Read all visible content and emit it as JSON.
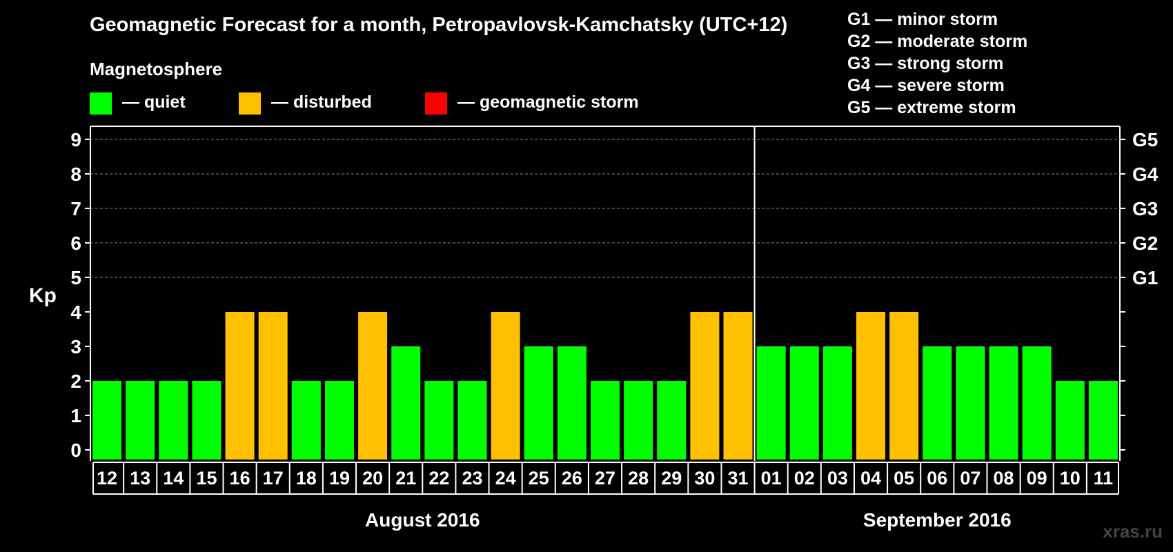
{
  "title": "Geomagnetic Forecast for a month, Petropavlovsk-Kamchatsky (UTC+12)",
  "legend": {
    "title": "Magnetosphere",
    "items": [
      {
        "label": "— quiet",
        "color": "#00ff00"
      },
      {
        "label": "— disturbed",
        "color": "#ffc000"
      },
      {
        "label": "— geomagnetic storm",
        "color": "#ff0000"
      }
    ]
  },
  "storm_legend": [
    "G1 — minor storm",
    "G2 — moderate storm",
    "G3 — strong storm",
    "G4 — severe storm",
    "G5 — extreme storm"
  ],
  "watermark": "xras.ru",
  "chart_data": {
    "type": "bar",
    "title": "Geomagnetic Forecast for a month, Petropavlovsk-Kamchatsky (UTC+12)",
    "ylabel": "Kp",
    "ylim": [
      0,
      9
    ],
    "yticks": [
      "0",
      "1",
      "2",
      "3",
      "4",
      "5",
      "6",
      "7",
      "8",
      "9"
    ],
    "right_ticks": [
      {
        "kp": 5,
        "label": "G1"
      },
      {
        "kp": 6,
        "label": "G2"
      },
      {
        "kp": 7,
        "label": "G3"
      },
      {
        "kp": 8,
        "label": "G4"
      },
      {
        "kp": 9,
        "label": "G5"
      }
    ],
    "grid_kp": [
      5,
      6,
      7,
      8,
      9
    ],
    "categories": [
      "12",
      "13",
      "14",
      "15",
      "16",
      "17",
      "18",
      "19",
      "20",
      "21",
      "22",
      "23",
      "24",
      "25",
      "26",
      "27",
      "28",
      "29",
      "30",
      "31",
      "01",
      "02",
      "03",
      "04",
      "05",
      "06",
      "07",
      "08",
      "09",
      "10",
      "11"
    ],
    "values": [
      2,
      2,
      2,
      2,
      4,
      4,
      2,
      2,
      4,
      3,
      2,
      2,
      4,
      3,
      3,
      2,
      2,
      2,
      4,
      4,
      3,
      3,
      3,
      4,
      4,
      3,
      3,
      3,
      3,
      2,
      2
    ],
    "status": [
      "quiet",
      "quiet",
      "quiet",
      "quiet",
      "disturbed",
      "disturbed",
      "quiet",
      "quiet",
      "disturbed",
      "quiet",
      "quiet",
      "quiet",
      "disturbed",
      "quiet",
      "quiet",
      "quiet",
      "quiet",
      "quiet",
      "disturbed",
      "disturbed",
      "quiet",
      "quiet",
      "quiet",
      "disturbed",
      "disturbed",
      "quiet",
      "quiet",
      "quiet",
      "quiet",
      "quiet",
      "quiet"
    ],
    "colors": {
      "quiet": "#00ff00",
      "disturbed": "#ffc000",
      "storm": "#ff0000"
    },
    "months": [
      {
        "label": "August 2016",
        "start_index": 0,
        "count": 20
      },
      {
        "label": "September 2016",
        "start_index": 20,
        "count": 11
      }
    ],
    "month_divider_after_index": 19
  }
}
